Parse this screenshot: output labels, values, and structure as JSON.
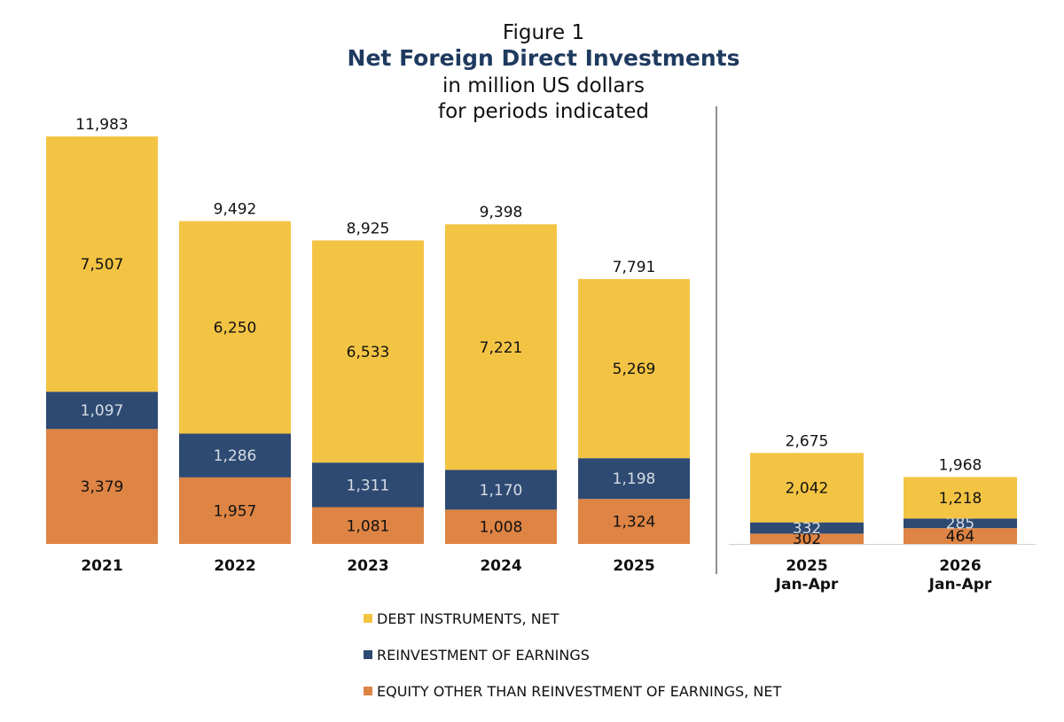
{
  "chart_data": {
    "type": "bar",
    "stacked": true,
    "figure_label": "Figure 1",
    "title": "Net Foreign Direct Investments",
    "subtitle_lines": [
      "in million US dollars",
      "for periods indicated"
    ],
    "groups": [
      {
        "categories": [
          {
            "label": "2021",
            "sublabel": ""
          },
          {
            "label": "2022",
            "sublabel": ""
          },
          {
            "label": "2023",
            "sublabel": ""
          },
          {
            "label": "2024",
            "sublabel": ""
          },
          {
            "label": "2025",
            "sublabel": ""
          }
        ],
        "totals": [
          11983,
          9492,
          8925,
          9398,
          7791
        ],
        "total_labels": [
          "11,983",
          "9,492",
          "8,925",
          "9,398",
          "7,791"
        ]
      },
      {
        "categories": [
          {
            "label": "2025",
            "sublabel": "Jan-Apr"
          },
          {
            "label": "2026",
            "sublabel": "Jan-Apr"
          }
        ],
        "totals": [
          2675,
          1968
        ],
        "total_labels": [
          "2,675",
          "1,968"
        ]
      }
    ],
    "series": [
      {
        "name": "EQUITY OTHER THAN REINVESTMENT OF EARNINGS, NET",
        "color": "#de8444",
        "values": [
          [
            3379,
            1957,
            1081,
            1008,
            1324
          ],
          [
            302,
            464
          ]
        ],
        "labels": [
          [
            "3,379",
            "1,957",
            "1,081",
            "1,008",
            "1,324"
          ],
          [
            "302",
            "464"
          ]
        ]
      },
      {
        "name": "REINVESTMENT OF EARNINGS",
        "color": "#2e4a72",
        "values": [
          [
            1097,
            1286,
            1311,
            1170,
            1198
          ],
          [
            332,
            285
          ]
        ],
        "labels": [
          [
            "1,097",
            "1,286",
            "1,311",
            "1,170",
            "1,198"
          ],
          [
            "332",
            "285"
          ]
        ]
      },
      {
        "name": "DEBT INSTRUMENTS, NET",
        "color": "#f3c444",
        "values": [
          [
            7507,
            6250,
            6533,
            7221,
            5269
          ],
          [
            2042,
            1218
          ]
        ],
        "labels": [
          [
            "7,507",
            "6,250",
            "6,533",
            "7,221",
            "5,269"
          ],
          [
            "2,042",
            "1,218"
          ]
        ]
      }
    ],
    "legend": {
      "placement": "bottom",
      "order": [
        "DEBT INSTRUMENTS, NET",
        "REINVESTMENT OF EARNINGS",
        "EQUITY OTHER THAN REINVESTMENT OF EARNINGS, NET"
      ]
    }
  }
}
